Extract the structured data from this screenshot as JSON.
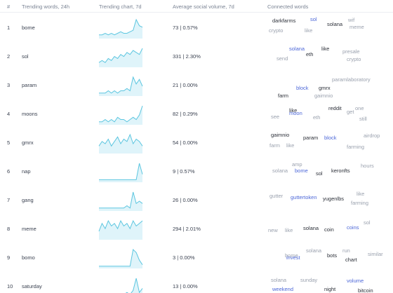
{
  "header": {
    "num": "#",
    "word": "Trending words, 24h",
    "chart": "Trending chart, 7d",
    "volume": "Average social volume, 7d",
    "connected": "Connected words"
  },
  "colors": {
    "chart_line": "#5cc6e0",
    "chart_fill": "#dff4fa",
    "dark_word": "#2b2f38",
    "gray_word": "#9aa1ae",
    "blue_word": "#4c67d8"
  },
  "rows": [
    {
      "num": "1",
      "word": "bome",
      "volume": "73 | 0.57%",
      "trend": [
        2,
        2,
        3,
        2,
        3,
        2,
        3,
        4,
        3,
        3,
        4,
        5,
        12,
        8,
        7
      ],
      "connected": [
        {
          "text": "darkfarms",
          "tone": "dark"
        },
        {
          "text": "sol",
          "tone": "blue"
        },
        {
          "text": "solana",
          "tone": "dark"
        },
        {
          "text": "wif",
          "tone": "gray"
        },
        {
          "text": "crypto",
          "tone": "gray"
        },
        {
          "text": "like",
          "tone": "gray"
        },
        {
          "text": "meme",
          "tone": "gray"
        }
      ]
    },
    {
      "num": "2",
      "word": "sol",
      "volume": "331 | 2.30%",
      "trend": [
        2,
        3,
        2,
        4,
        3,
        5,
        4,
        6,
        5,
        7,
        6,
        8,
        7,
        6,
        9
      ],
      "connected": [
        {
          "text": "solana",
          "tone": "blue"
        },
        {
          "text": "like",
          "tone": "dark"
        },
        {
          "text": "eth",
          "tone": "dark"
        },
        {
          "text": "presale",
          "tone": "gray"
        },
        {
          "text": "send",
          "tone": "gray"
        },
        {
          "text": "crypto",
          "tone": "gray"
        }
      ]
    },
    {
      "num": "3",
      "word": "param",
      "volume": "21 | 0.00%",
      "trend": [
        1,
        1,
        1,
        2,
        1,
        2,
        1,
        2,
        2,
        3,
        2,
        8,
        5,
        7,
        4
      ],
      "connected": [
        {
          "text": "paramlaboratory",
          "tone": "gray"
        },
        {
          "text": "block",
          "tone": "blue"
        },
        {
          "text": "gmrx",
          "tone": "dark"
        },
        {
          "text": "farm",
          "tone": "dark"
        },
        {
          "text": "gaimnio",
          "tone": "gray"
        }
      ]
    },
    {
      "num": "4",
      "word": "moons",
      "volume": "82 | 0.29%",
      "trend": [
        1,
        1,
        2,
        1,
        2,
        1,
        3,
        2,
        2,
        1,
        2,
        3,
        2,
        4,
        8
      ],
      "connected": [
        {
          "text": "reddit",
          "tone": "dark"
        },
        {
          "text": "one",
          "tone": "gray"
        },
        {
          "text": "like",
          "tone": "dark"
        },
        {
          "text": "get",
          "tone": "gray"
        },
        {
          "text": "moon",
          "tone": "blue"
        },
        {
          "text": "see",
          "tone": "gray"
        },
        {
          "text": "eth",
          "tone": "gray"
        },
        {
          "text": "still",
          "tone": "gray"
        }
      ]
    },
    {
      "num": "5",
      "word": "gmrx",
      "volume": "54 | 0.00%",
      "trend": [
        3,
        5,
        4,
        6,
        3,
        5,
        7,
        4,
        6,
        5,
        8,
        4,
        6,
        5,
        3
      ],
      "connected": [
        {
          "text": "gaimnio",
          "tone": "dark"
        },
        {
          "text": "airdrop",
          "tone": "gray"
        },
        {
          "text": "param",
          "tone": "dark"
        },
        {
          "text": "block",
          "tone": "blue"
        },
        {
          "text": "farm",
          "tone": "gray"
        },
        {
          "text": "like",
          "tone": "gray"
        },
        {
          "text": "farming",
          "tone": "gray"
        }
      ]
    },
    {
      "num": "6",
      "word": "nap",
      "volume": "9 | 0.57%",
      "trend": [
        1,
        1,
        1,
        1,
        1,
        1,
        1,
        1,
        1,
        1,
        1,
        1,
        1,
        10,
        4
      ],
      "connected": [
        {
          "text": "amp",
          "tone": "gray"
        },
        {
          "text": "hours",
          "tone": "gray"
        },
        {
          "text": "solana",
          "tone": "gray"
        },
        {
          "text": "bome",
          "tone": "blue"
        },
        {
          "text": "keronfts",
          "tone": "dark"
        },
        {
          "text": "sol",
          "tone": "dark"
        }
      ]
    },
    {
      "num": "7",
      "word": "gang",
      "volume": "26 | 0.00%",
      "trend": [
        1,
        1,
        1,
        1,
        1,
        1,
        1,
        1,
        1,
        2,
        1,
        8,
        3,
        4,
        3
      ],
      "connected": [
        {
          "text": "gutter",
          "tone": "gray"
        },
        {
          "text": "like",
          "tone": "gray"
        },
        {
          "text": "guttertoken",
          "tone": "blue"
        },
        {
          "text": "yugenlbs",
          "tone": "dark"
        },
        {
          "text": "farming",
          "tone": "gray"
        }
      ]
    },
    {
      "num": "8",
      "word": "meme",
      "volume": "294 | 2.01%",
      "trend": [
        3,
        6,
        4,
        7,
        5,
        6,
        4,
        7,
        5,
        6,
        4,
        7,
        5,
        6,
        7
      ],
      "connected": [
        {
          "text": "sol",
          "tone": "gray"
        },
        {
          "text": "coins",
          "tone": "blue"
        },
        {
          "text": "solana",
          "tone": "dark"
        },
        {
          "text": "new",
          "tone": "gray"
        },
        {
          "text": "like",
          "tone": "gray"
        },
        {
          "text": "coin",
          "tone": "dark"
        }
      ]
    },
    {
      "num": "9",
      "word": "bomo",
      "volume": "3 | 0.00%",
      "trend": [
        1,
        1,
        1,
        1,
        1,
        1,
        1,
        1,
        1,
        1,
        1,
        12,
        10,
        5,
        2
      ],
      "connected": [
        {
          "text": "solana",
          "tone": "gray"
        },
        {
          "text": "run",
          "tone": "gray"
        },
        {
          "text": "similar",
          "tone": "gray"
        },
        {
          "text": "bome",
          "tone": "gray"
        },
        {
          "text": "bots",
          "tone": "dark"
        },
        {
          "text": "invest",
          "tone": "blue"
        },
        {
          "text": "chart",
          "tone": "dark"
        }
      ]
    },
    {
      "num": "10",
      "word": "saturday",
      "volume": "13 | 0.00%",
      "trend": [
        1,
        1,
        1,
        1,
        1,
        1,
        1,
        1,
        1,
        2,
        1,
        3,
        9,
        2,
        4
      ],
      "connected": [
        {
          "text": "solana",
          "tone": "gray"
        },
        {
          "text": "sunday",
          "tone": "gray"
        },
        {
          "text": "volume",
          "tone": "blue"
        },
        {
          "text": "weekend",
          "tone": "blue"
        },
        {
          "text": "night",
          "tone": "dark"
        },
        {
          "text": "bitcoin",
          "tone": "dark"
        }
      ]
    }
  ]
}
